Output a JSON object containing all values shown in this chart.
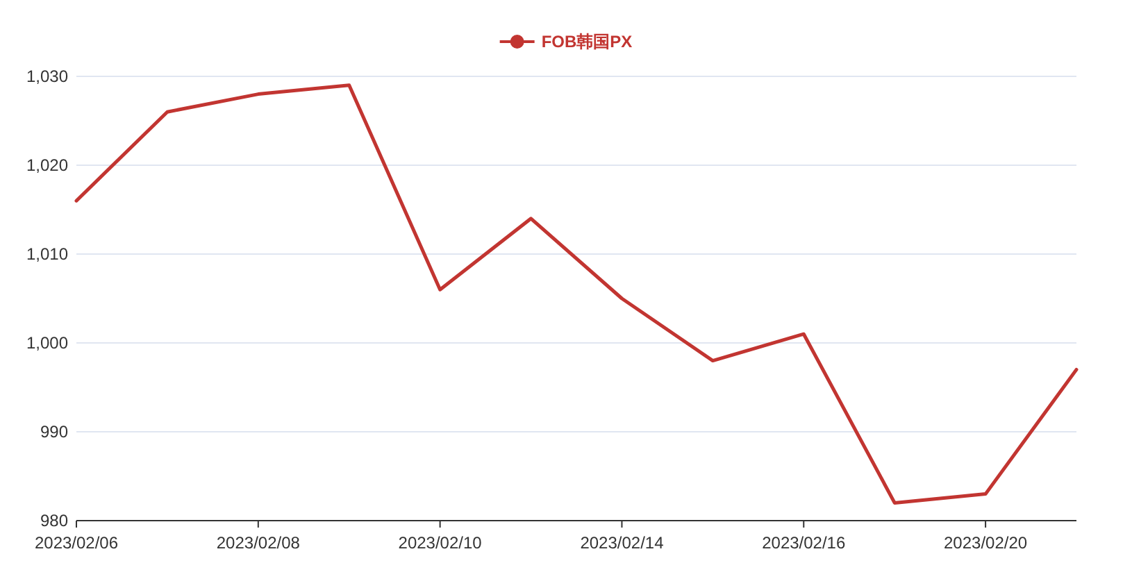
{
  "chart_data": {
    "type": "line",
    "categories": [
      "2023/02/06",
      null,
      "2023/02/08",
      null,
      "2023/02/10",
      null,
      "2023/02/14",
      null,
      "2023/02/16",
      null,
      "2023/02/20",
      null
    ],
    "series": [
      {
        "name": "FOB韩国PX",
        "color": "#c23531",
        "values": [
          1016,
          1026,
          1028,
          1029,
          1006,
          1014,
          1005,
          998,
          1001,
          982,
          983,
          997
        ]
      }
    ],
    "ylim": [
      980,
      1030
    ],
    "yticks": [
      980,
      990,
      {
        "value": 1000,
        "label": "1,000"
      },
      {
        "value": 1010,
        "label": "1,010"
      },
      {
        "value": 1020,
        "label": "1,020"
      },
      {
        "value": 1030,
        "label": "1,030"
      }
    ],
    "grid": "y",
    "legend": "top",
    "line_style": "solid"
  }
}
